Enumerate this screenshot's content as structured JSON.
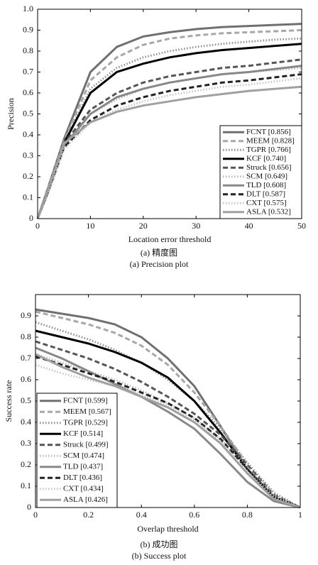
{
  "chart_data": [
    {
      "type": "line",
      "x_label": "Location error threshold",
      "y_label": "Precision",
      "captions": [
        "(a) 精度图",
        "(a) Precision plot"
      ],
      "x": [
        0,
        2,
        5,
        10,
        15,
        20,
        25,
        30,
        35,
        40,
        45,
        50
      ],
      "xlim": [
        0,
        50
      ],
      "ylim": [
        0,
        1
      ],
      "xticks": [
        0,
        10,
        20,
        30,
        40,
        50
      ],
      "yticks": [
        0,
        0.1,
        0.2,
        0.3,
        0.4,
        0.5,
        0.6,
        0.7,
        0.8,
        0.9,
        {
          "value": 1,
          "label": "1.0"
        }
      ],
      "legend": "lower right",
      "series": [
        {
          "name": "FCNT [0.856]",
          "color": "#707070",
          "dash": "solid",
          "values": [
            0,
            0.15,
            0.38,
            0.7,
            0.82,
            0.87,
            0.89,
            0.905,
            0.915,
            0.92,
            0.925,
            0.93
          ]
        },
        {
          "name": "MEEM [0.828]",
          "color": "#a8a8a8",
          "dash": "dashed",
          "values": [
            0,
            0.15,
            0.37,
            0.66,
            0.77,
            0.83,
            0.86,
            0.875,
            0.885,
            0.89,
            0.895,
            0.9
          ]
        },
        {
          "name": "TGPR [0.766]",
          "color": "#909090",
          "dash": "dotted",
          "values": [
            0,
            0.14,
            0.36,
            0.62,
            0.72,
            0.77,
            0.8,
            0.82,
            0.835,
            0.845,
            0.855,
            0.86
          ]
        },
        {
          "name": "KCF [0.740]",
          "color": "#000000",
          "dash": "solid",
          "values": [
            0,
            0.14,
            0.36,
            0.6,
            0.7,
            0.74,
            0.77,
            0.79,
            0.805,
            0.815,
            0.825,
            0.835
          ]
        },
        {
          "name": "Struck [0.656]",
          "color": "#555555",
          "dash": "dashed",
          "values": [
            0,
            0.14,
            0.36,
            0.52,
            0.6,
            0.65,
            0.68,
            0.7,
            0.72,
            0.73,
            0.745,
            0.76
          ]
        },
        {
          "name": "SCM [0.649]",
          "color": "#bbbbbb",
          "dash": "dotted",
          "values": [
            0,
            0.12,
            0.33,
            0.5,
            0.57,
            0.62,
            0.65,
            0.67,
            0.69,
            0.7,
            0.71,
            0.72
          ]
        },
        {
          "name": "TLD [0.608]",
          "color": "#888888",
          "dash": "solid",
          "values": [
            0,
            0.13,
            0.35,
            0.5,
            0.58,
            0.62,
            0.65,
            0.67,
            0.69,
            0.7,
            0.715,
            0.73
          ]
        },
        {
          "name": "DLT [0.587]",
          "color": "#222222",
          "dash": "dashed",
          "values": [
            0,
            0.13,
            0.34,
            0.47,
            0.54,
            0.58,
            0.61,
            0.63,
            0.65,
            0.66,
            0.675,
            0.69
          ]
        },
        {
          "name": "CXT [0.575]",
          "color": "#c8c8c8",
          "dash": "dotted",
          "values": [
            0,
            0.12,
            0.33,
            0.46,
            0.52,
            0.56,
            0.59,
            0.61,
            0.63,
            0.64,
            0.655,
            0.67
          ]
        },
        {
          "name": "ASLA [0.532]",
          "color": "#a0a0a0",
          "dash": "solid",
          "values": [
            0,
            0.14,
            0.36,
            0.46,
            0.51,
            0.54,
            0.56,
            0.58,
            0.595,
            0.61,
            0.62,
            0.63
          ]
        }
      ]
    },
    {
      "type": "line",
      "x_label": "Overlap threshold",
      "y_label": "Success rate",
      "captions": [
        "(b) 成功图",
        "(b) Success plot"
      ],
      "x": [
        0,
        0.1,
        0.2,
        0.3,
        0.4,
        0.5,
        0.6,
        0.7,
        0.8,
        0.9,
        1
      ],
      "xlim": [
        0,
        1
      ],
      "ylim": [
        0,
        1
      ],
      "xticks": [
        0,
        0.2,
        0.4,
        0.6,
        0.8,
        1
      ],
      "yticks": [
        0,
        0.1,
        0.2,
        0.3,
        0.4,
        0.5,
        0.6,
        0.7,
        0.8,
        0.9
      ],
      "legend": "lower left",
      "series": [
        {
          "name": "FCNT [0.599]",
          "color": "#707070",
          "dash": "solid",
          "values": [
            0.93,
            0.91,
            0.89,
            0.86,
            0.8,
            0.7,
            0.57,
            0.38,
            0.18,
            0.05,
            0
          ]
        },
        {
          "name": "MEEM [0.567]",
          "color": "#a8a8a8",
          "dash": "dashed",
          "values": [
            0.92,
            0.89,
            0.86,
            0.82,
            0.76,
            0.67,
            0.54,
            0.38,
            0.2,
            0.06,
            0
          ]
        },
        {
          "name": "TGPR [0.529]",
          "color": "#909090",
          "dash": "dotted",
          "values": [
            0.87,
            0.83,
            0.79,
            0.74,
            0.68,
            0.6,
            0.5,
            0.37,
            0.21,
            0.07,
            0
          ]
        },
        {
          "name": "KCF [0.514]",
          "color": "#000000",
          "dash": "solid",
          "values": [
            0.83,
            0.8,
            0.77,
            0.73,
            0.68,
            0.61,
            0.5,
            0.35,
            0.18,
            0.05,
            0
          ]
        },
        {
          "name": "Struck [0.499]",
          "color": "#555555",
          "dash": "dashed",
          "values": [
            0.78,
            0.74,
            0.7,
            0.65,
            0.59,
            0.52,
            0.44,
            0.34,
            0.2,
            0.06,
            0
          ]
        },
        {
          "name": "SCM [0.474]",
          "color": "#bbbbbb",
          "dash": "dotted",
          "values": [
            0.72,
            0.68,
            0.64,
            0.6,
            0.55,
            0.49,
            0.42,
            0.32,
            0.19,
            0.06,
            0
          ]
        },
        {
          "name": "TLD [0.437]",
          "color": "#888888",
          "dash": "solid",
          "values": [
            0.75,
            0.7,
            0.64,
            0.58,
            0.52,
            0.45,
            0.37,
            0.25,
            0.12,
            0.03,
            0
          ]
        },
        {
          "name": "DLT [0.436]",
          "color": "#222222",
          "dash": "dashed",
          "values": [
            0.71,
            0.67,
            0.63,
            0.59,
            0.54,
            0.49,
            0.42,
            0.32,
            0.18,
            0.05,
            0
          ]
        },
        {
          "name": "CXT [0.434]",
          "color": "#c8c8c8",
          "dash": "dotted",
          "values": [
            0.67,
            0.63,
            0.6,
            0.57,
            0.53,
            0.48,
            0.41,
            0.31,
            0.17,
            0.05,
            0
          ]
        },
        {
          "name": "ASLA [0.426]",
          "color": "#a0a0a0",
          "dash": "solid",
          "values": [
            0.72,
            0.66,
            0.61,
            0.57,
            0.52,
            0.47,
            0.4,
            0.3,
            0.16,
            0.04,
            0
          ]
        }
      ]
    }
  ]
}
